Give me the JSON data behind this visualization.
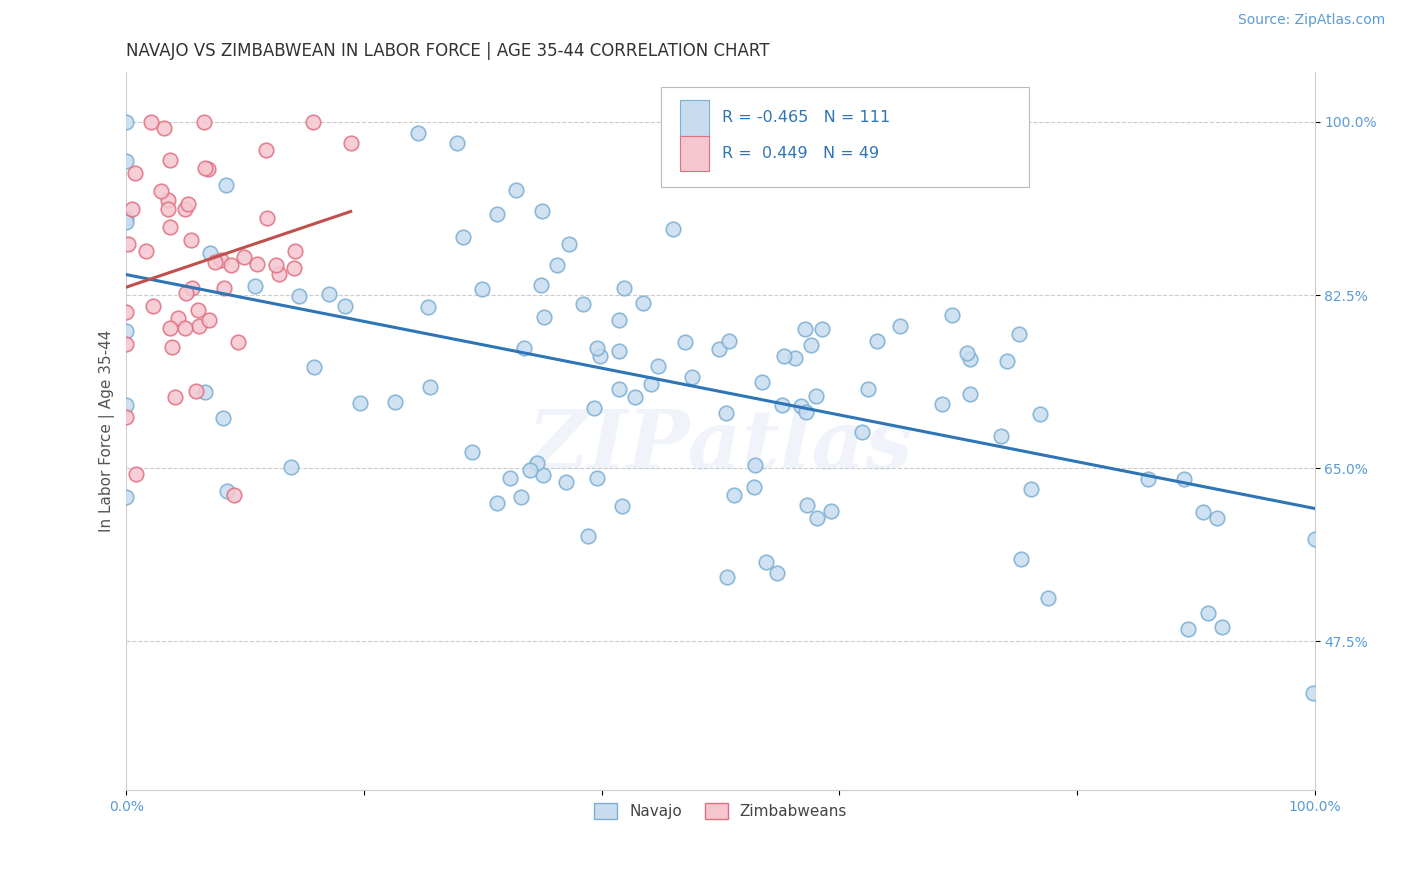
{
  "title": "NAVAJO VS ZIMBABWEAN IN LABOR FORCE | AGE 35-44 CORRELATION CHART",
  "source": "Source: ZipAtlas.com",
  "ylabel": "In Labor Force | Age 35-44",
  "xlim": [
    0.0,
    1.0
  ],
  "ylim": [
    0.325,
    1.05
  ],
  "x_ticks": [
    0.0,
    0.2,
    0.4,
    0.6,
    0.8,
    1.0
  ],
  "x_tick_labels": [
    "0.0%",
    "",
    "",
    "",
    "",
    "100.0%"
  ],
  "y_ticks": [
    0.475,
    0.65,
    0.825,
    1.0
  ],
  "y_tick_labels": [
    "47.5%",
    "65.0%",
    "82.5%",
    "100.0%"
  ],
  "grid_color": "#cccccc",
  "bg_color": "#ffffff",
  "navajo_color": "#c8dcf0",
  "navajo_edge_color": "#7bafd4",
  "zimbabwe_color": "#f5c6d0",
  "zimbabwe_edge_color": "#e07080",
  "navajo_R": -0.465,
  "navajo_N": 111,
  "zimbabwe_R": 0.449,
  "zimbabwe_N": 49,
  "navajo_trend_color": "#2e75b6",
  "zimbabwe_trend_color": "#c0504d",
  "legend_label_navajo": "Navajo",
  "legend_label_zimbabwe": "Zimbabweans",
  "watermark": "ZIPatlas",
  "title_fontsize": 12,
  "axis_fontsize": 11,
  "tick_fontsize": 10,
  "source_fontsize": 10
}
